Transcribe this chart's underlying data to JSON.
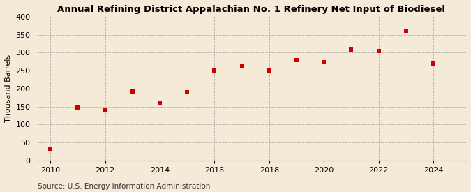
{
  "title": "Annual Refining District Appalachian No. 1 Refinery Net Input of Biodiesel",
  "ylabel": "Thousand Barrels",
  "source": "Source: U.S. Energy Information Administration",
  "background_color": "#f5ead8",
  "x_data": [
    2010,
    2011,
    2012,
    2013,
    2014,
    2015,
    2016,
    2017,
    2018,
    2019,
    2020,
    2021,
    2022,
    2023,
    2024
  ],
  "y_data": [
    33,
    147,
    141,
    191,
    159,
    190,
    250,
    261,
    250,
    279,
    273,
    308,
    305,
    360,
    270
  ],
  "marker_color": "#cc0000",
  "marker": "s",
  "marker_size": 18,
  "xlim": [
    2009.5,
    2025.2
  ],
  "ylim": [
    0,
    400
  ],
  "xticks": [
    2010,
    2012,
    2014,
    2016,
    2018,
    2020,
    2022,
    2024
  ],
  "yticks": [
    0,
    50,
    100,
    150,
    200,
    250,
    300,
    350,
    400
  ],
  "grid_color": "#aaaaaa",
  "grid_style": "--",
  "title_fontsize": 9.5,
  "label_fontsize": 8,
  "tick_fontsize": 8,
  "source_fontsize": 7.5
}
